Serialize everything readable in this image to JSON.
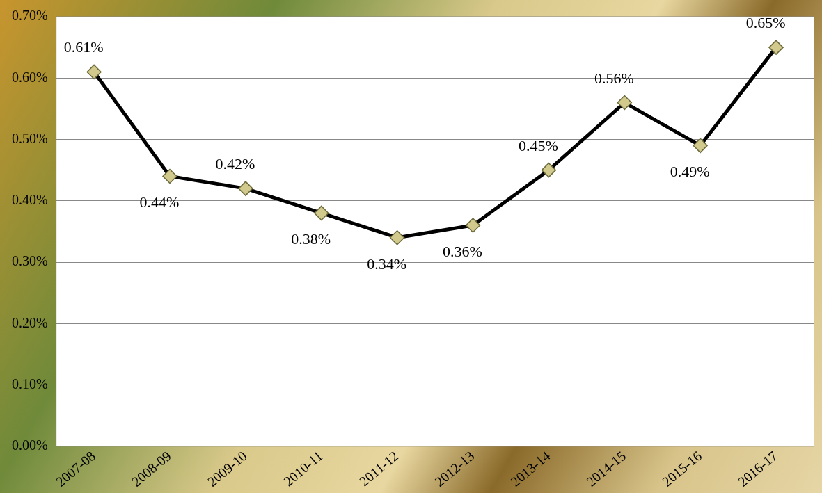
{
  "chart_data": {
    "type": "line",
    "categories": [
      "2007-08",
      "2008-09",
      "2009-10",
      "2010-11",
      "2011-12",
      "2012-13",
      "2013-14",
      "2014-15",
      "2015-16",
      "2016-17"
    ],
    "series": [
      {
        "color": "#000000",
        "values": [
          0.61,
          0.44,
          0.42,
          0.38,
          0.34,
          0.36,
          0.45,
          0.56,
          0.49,
          0.65
        ],
        "value_labels": [
          "0.61%",
          "0.44%",
          "0.42%",
          "0.38%",
          "0.34%",
          "0.36%",
          "0.45%",
          "0.56%",
          "0.49%",
          "0.65%"
        ]
      }
    ],
    "ylim": [
      0,
      0.7
    ],
    "yticks": [
      {
        "value": 0,
        "label": "0.00%"
      },
      {
        "value": 0.1,
        "label": "0.10%"
      },
      {
        "value": 0.2,
        "label": "0.20%"
      },
      {
        "value": 0.3,
        "label": "0.30%"
      },
      {
        "value": 0.4,
        "label": "0.40%"
      },
      {
        "value": 0.5,
        "label": "0.50%"
      },
      {
        "value": 0.6,
        "label": "0.60%"
      },
      {
        "value": 0.7,
        "label": "0.70%"
      }
    ],
    "grid": "y",
    "legend": false,
    "marker": "diamond",
    "line_style": "solid"
  }
}
